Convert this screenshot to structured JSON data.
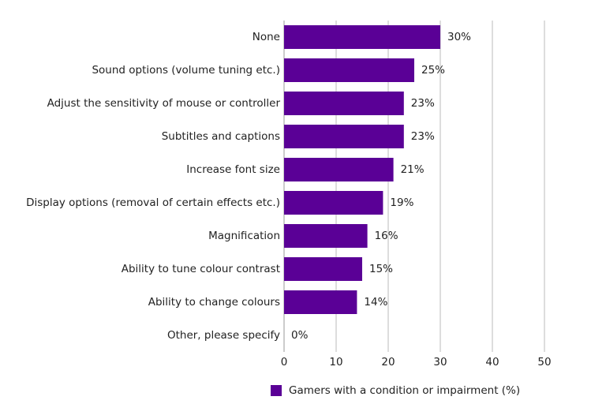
{
  "chart_data": {
    "type": "bar",
    "orientation": "horizontal",
    "categories": [
      "None",
      "Sound options (volume tuning etc.)",
      "Adjust the sensitivity of mouse or controller",
      "Subtitles and captions",
      "Increase font size",
      "Display options (removal of certain effects etc.)",
      "Magnification",
      "Ability to tune colour contrast",
      "Ability to change colours",
      "Other, please specify"
    ],
    "series": [
      {
        "name": "Gamers with a condition or impairment (%)",
        "color": "#5a0096",
        "values": [
          30,
          25,
          23,
          23,
          21,
          19,
          16,
          15,
          14,
          0
        ],
        "value_labels": [
          "30%",
          "25%",
          "23%",
          "23%",
          "21%",
          "19%",
          "16%",
          "15%",
          "14%",
          "0%"
        ]
      }
    ],
    "xlim": [
      0,
      50
    ],
    "xticks": [
      0,
      10,
      20,
      30,
      40,
      50
    ],
    "grid": true,
    "legend": "bottom"
  }
}
